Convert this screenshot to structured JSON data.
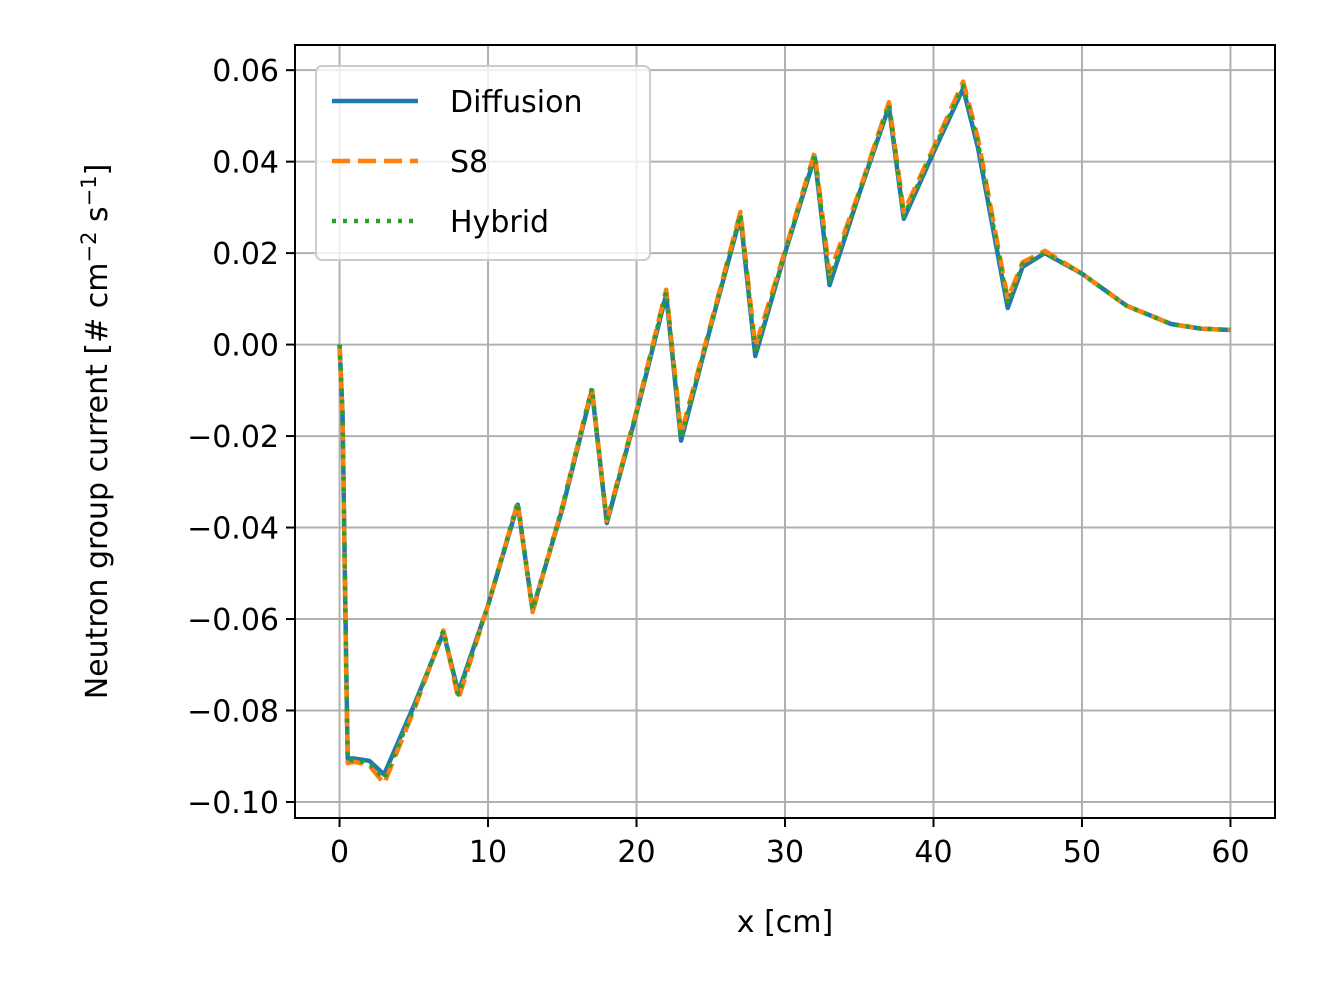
{
  "chart_data": {
    "type": "line",
    "xlabel": "x [cm]",
    "ylabel_main": "Neutron group current [# cm",
    "ylabel_sup1": "−2",
    "ylabel_mid": " s",
    "ylabel_sup2": "−1",
    "ylabel_end": "]",
    "xlim": [
      -3,
      63
    ],
    "ylim": [
      -0.1035,
      0.0655
    ],
    "xticks": [
      0,
      10,
      20,
      30,
      40,
      50,
      60
    ],
    "xtick_labels": [
      "0",
      "10",
      "20",
      "30",
      "40",
      "50",
      "60"
    ],
    "yticks": [
      -0.1,
      -0.08,
      -0.06,
      -0.04,
      -0.02,
      0.0,
      0.02,
      0.04,
      0.06
    ],
    "ytick_labels": [
      "−0.10",
      "−0.08",
      "−0.06",
      "−0.04",
      "−0.02",
      "0.00",
      "0.02",
      "0.04",
      "0.06"
    ],
    "grid": true,
    "legend_position": "top-left",
    "series": [
      {
        "name": "Diffusion",
        "color": "#1f77b4",
        "style": "solid",
        "x": [
          0,
          0.2,
          0.45,
          0.55,
          1.0,
          2.0,
          3.0,
          5.0,
          7.0,
          8.0,
          10.0,
          12.0,
          13.0,
          15.0,
          17.0,
          18.0,
          20.0,
          22.0,
          23.0,
          25.0,
          27.0,
          28.0,
          30.0,
          32.0,
          33.0,
          35.0,
          37.0,
          38.0,
          40.0,
          42.0,
          43.0,
          45.0,
          46.0,
          47.5,
          50.0,
          53.0,
          56.0,
          58.0,
          60.0
        ],
        "y": [
          0.0,
          -0.015,
          -0.07,
          -0.0905,
          -0.0905,
          -0.091,
          -0.094,
          -0.079,
          -0.063,
          -0.076,
          -0.057,
          -0.035,
          -0.058,
          -0.036,
          -0.01,
          -0.039,
          -0.015,
          0.011,
          -0.021,
          0.004,
          0.028,
          -0.0025,
          0.02,
          0.041,
          0.013,
          0.033,
          0.052,
          0.0275,
          0.042,
          0.056,
          0.043,
          0.008,
          0.017,
          0.02,
          0.0155,
          0.0085,
          0.0045,
          0.0035,
          0.0032
        ]
      },
      {
        "name": "S8",
        "color": "#ff7f0e",
        "style": "dashed",
        "x": [
          0,
          0.2,
          0.45,
          0.55,
          1.0,
          2.0,
          3.0,
          5.0,
          7.0,
          8.0,
          10.0,
          12.0,
          13.0,
          15.0,
          17.0,
          18.0,
          20.0,
          22.0,
          23.0,
          25.0,
          27.0,
          28.0,
          30.0,
          32.0,
          33.0,
          35.0,
          37.0,
          38.0,
          40.0,
          42.0,
          43.0,
          45.0,
          46.0,
          47.5,
          50.0,
          53.0,
          56.0,
          58.0,
          60.0
        ],
        "y": [
          0.0,
          -0.016,
          -0.072,
          -0.0915,
          -0.0912,
          -0.092,
          -0.096,
          -0.08,
          -0.0625,
          -0.0775,
          -0.057,
          -0.0345,
          -0.0585,
          -0.0355,
          -0.0095,
          -0.0385,
          -0.0145,
          0.012,
          -0.0195,
          0.0045,
          0.029,
          -0.0005,
          0.0205,
          0.042,
          0.0155,
          0.0335,
          0.053,
          0.029,
          0.043,
          0.0575,
          0.045,
          0.01,
          0.018,
          0.0205,
          0.0155,
          0.0085,
          0.0045,
          0.0035,
          0.0032
        ]
      },
      {
        "name": "Hybrid",
        "color": "#2ca02c",
        "style": "dotted",
        "x": [
          0,
          0.2,
          0.45,
          0.55,
          1.0,
          2.0,
          3.0,
          5.0,
          7.0,
          8.0,
          10.0,
          12.0,
          13.0,
          15.0,
          17.0,
          18.0,
          20.0,
          22.0,
          23.0,
          25.0,
          27.0,
          28.0,
          30.0,
          32.0,
          33.0,
          35.0,
          37.0,
          38.0,
          40.0,
          42.0,
          43.0,
          45.0,
          46.0,
          47.5,
          50.0,
          53.0,
          56.0,
          58.0,
          60.0
        ],
        "y": [
          0.0,
          -0.015,
          -0.071,
          -0.091,
          -0.0908,
          -0.0915,
          -0.095,
          -0.0795,
          -0.0625,
          -0.0765,
          -0.057,
          -0.0345,
          -0.058,
          -0.0355,
          -0.0095,
          -0.039,
          -0.0148,
          0.0115,
          -0.0205,
          0.004,
          0.0285,
          -0.002,
          0.02,
          0.0415,
          0.014,
          0.033,
          0.0525,
          0.028,
          0.0425,
          0.0565,
          0.044,
          0.009,
          0.0175,
          0.02,
          0.0155,
          0.0085,
          0.0045,
          0.0035,
          0.0032
        ]
      }
    ]
  }
}
